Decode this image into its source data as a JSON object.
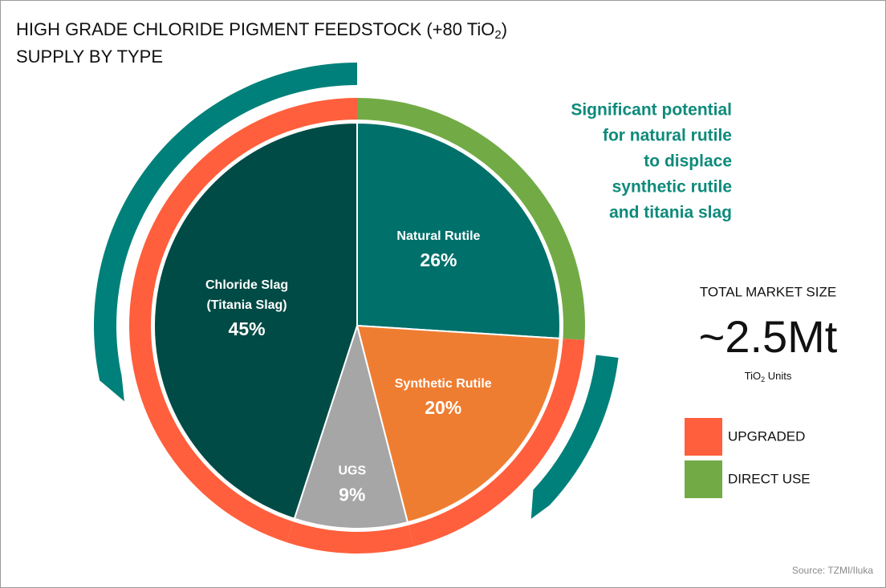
{
  "chart_data": {
    "type": "pie",
    "title": [
      "HIGH GRADE CHLORIDE PIGMENT FEEDSTOCK (+80 TiO",
      "2",
      ")"
    ],
    "subtitle": "SUPPLY BY TYPE",
    "categories": [
      [
        "Natural Rutile"
      ],
      [
        "Synthetic Rutile"
      ],
      [
        "UGS"
      ],
      [
        "Chloride Slag",
        "(Titania Slag)"
      ]
    ],
    "values": [
      26,
      20,
      9,
      45
    ],
    "value_labels": [
      "26%",
      "20%",
      "9%",
      "45%"
    ],
    "colors": [
      "#00706a",
      "#ef7d31",
      "#a6a6a6",
      "#004b45"
    ],
    "ring_colors": [
      "#72ab45",
      "#ff5f3c",
      "#ff5f3c",
      "#ff5f3c"
    ],
    "legend": [
      {
        "name": "UPGRADED",
        "color": "#ff5f3c"
      },
      {
        "name": "DIRECT USE",
        "color": "#72ab45"
      }
    ],
    "annotation": [
      "Significant potential",
      "for natural rutile",
      "to displace",
      "synthetic rutile",
      "and titania slag"
    ],
    "market_label": "TOTAL MARKET SIZE",
    "market_value": "~2.5Mt",
    "market_units": [
      "TiO",
      "2",
      " Units"
    ],
    "source": "Source: TZMI/Iluka"
  }
}
